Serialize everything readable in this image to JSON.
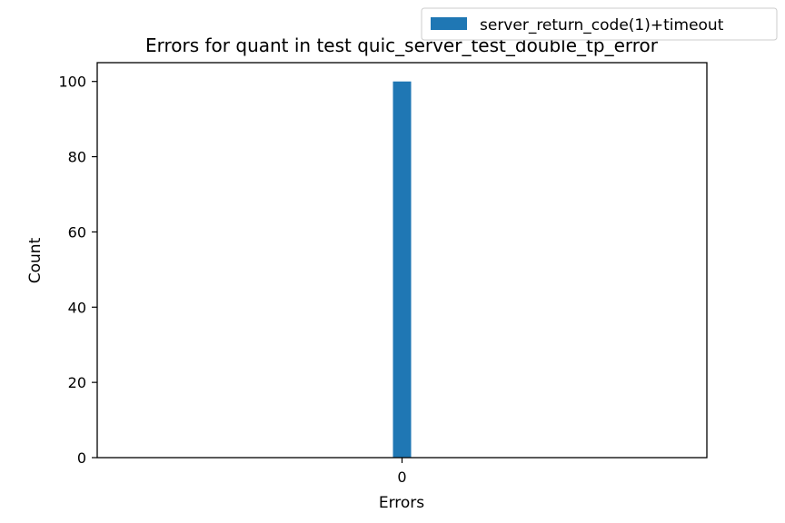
{
  "chart_data": {
    "type": "bar",
    "title": "Errors for quant in test quic_server_test_double_tp_error",
    "xlabel": "Errors",
    "ylabel": "Count",
    "categories": [
      "0"
    ],
    "series": [
      {
        "name": "server_return_code(1)+timeout",
        "values": [
          100
        ],
        "color": "#1f77b4"
      }
    ],
    "ylim": [
      0,
      105
    ],
    "yticks": [
      0,
      20,
      40,
      60,
      80,
      100
    ],
    "grid": false,
    "legend_position": "top-right"
  }
}
